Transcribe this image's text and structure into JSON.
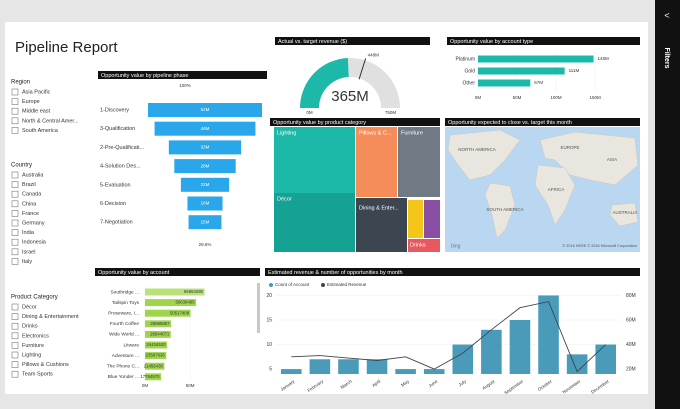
{
  "title": "Pipeline Report",
  "slicers": [
    {
      "title": "Region",
      "items": [
        "Asia Pacific",
        "Europe",
        "Middle east",
        "North & Central Amer...",
        "South America"
      ]
    },
    {
      "title": "Country",
      "items": [
        "Australia",
        "Brazil",
        "Canada",
        "China",
        "France",
        "Germany",
        "India",
        "Indonesia",
        "Israel",
        "Italy"
      ]
    },
    {
      "title": "Product Category",
      "items": [
        "Décor",
        "Dining & Entertainment",
        "Drinks",
        "Electronics",
        "Furniture",
        "Lighting",
        "Pillows & Cushions",
        "Team Sports"
      ]
    }
  ],
  "funnel": {
    "title": "Opportunity value by pipeline phase",
    "top_label": "100%",
    "bottom_label": "29.6%",
    "categories": [
      "1-Discovery",
      "3-Qualification",
      "2-Pre-Qualificati...",
      "4-Solution Des...",
      "5-Evaluation",
      "6-Decision",
      "7-Negotiation"
    ],
    "values": [
      52,
      46,
      33,
      28,
      22,
      16,
      15
    ],
    "value_labels": [
      "52M",
      "46M",
      "33M",
      "28M",
      "22M",
      "16M",
      "15M"
    ],
    "color": "#2aa6ea"
  },
  "gauge": {
    "title": "Actual vs. target  revenue ($)",
    "value": 365,
    "value_label": "365M",
    "target": 448,
    "target_label": "448M",
    "min": {
      "value": 0,
      "label": "0M"
    },
    "max": {
      "value": 750,
      "label": "750M"
    },
    "color": "#1db9a8"
  },
  "account_type": {
    "title": "Opportunity value by account type",
    "categories": [
      "Platinum",
      "Gold",
      "Other"
    ],
    "values": [
      148,
      111,
      67
    ],
    "value_labels": [
      "148M",
      "111M",
      "67M"
    ],
    "xlim": [
      0,
      155
    ],
    "xticks": [
      {
        "value": 0,
        "label": "0M"
      },
      {
        "value": 50,
        "label": "50M"
      },
      {
        "value": 100,
        "label": "100M"
      },
      {
        "value": 150,
        "label": "150M"
      }
    ],
    "color": "#1db9a8"
  },
  "treemap": {
    "title": "Opportunity value by product category",
    "labels": [
      "Lighting",
      "Pillows & C...",
      "Furniture",
      "Décor",
      "Dining & Enter...",
      "Drinks"
    ]
  },
  "map": {
    "title": "Opportunity expected to close vs. target this month",
    "labels": [
      "NORTH AMERICA",
      "EUROPE",
      "ASIA",
      "AFRICA",
      "SOUTH AMERICA",
      "AUSTRALIA"
    ],
    "credits": "© 2016 HERE   © 2016 Microsoft Corporation",
    "logo": "bing"
  },
  "accounts": {
    "title": "Opportunity value by account",
    "categories": [
      "Southridge ...",
      "Tailspin Toys",
      "Proseware, I...",
      "Fourth Coffee",
      "Wide World ...",
      "Litware",
      "Adventure ...",
      "The Phone C...",
      "Blue Yonder ..."
    ],
    "values": [
      65964290,
      56639495,
      50517408,
      28865957,
      28544071,
      24434520,
      23587636,
      21456430,
      17764570
    ],
    "xlim": [
      0,
      72000000
    ],
    "xticks": [
      {
        "value": 0,
        "label": "0M"
      },
      {
        "value": 50000000,
        "label": "50M"
      }
    ],
    "color": "#9fd54c"
  },
  "monthly": {
    "title": "Estimated revenue & number of opportunities by month",
    "categories": [
      "January",
      "February",
      "March",
      "April",
      "May",
      "June",
      "July",
      "August",
      "September",
      "October",
      "November",
      "December"
    ],
    "series": [
      {
        "name": "Count of Account",
        "color": "#4a9bb9",
        "values": [
          5,
          7,
          7,
          7,
          5,
          5,
          10,
          13,
          15,
          20,
          8,
          10
        ]
      },
      {
        "name": "Estimated Revenue",
        "color": "#3b4650",
        "axis": "y2",
        "values": [
          30,
          31,
          29,
          27,
          30,
          20,
          33,
          52,
          70,
          75,
          18,
          40
        ]
      }
    ],
    "ylim": [
      4,
      20.5
    ],
    "yticks": [
      5,
      10,
      15,
      20
    ],
    "y2lim": [
      16,
      82
    ],
    "y2ticks": [
      {
        "value": 20,
        "label": "20M"
      },
      {
        "value": 40,
        "label": "40M"
      },
      {
        "value": 60,
        "label": "60M"
      },
      {
        "value": 80,
        "label": "80M"
      }
    ]
  },
  "filters_pane": {
    "label": "Filters"
  }
}
